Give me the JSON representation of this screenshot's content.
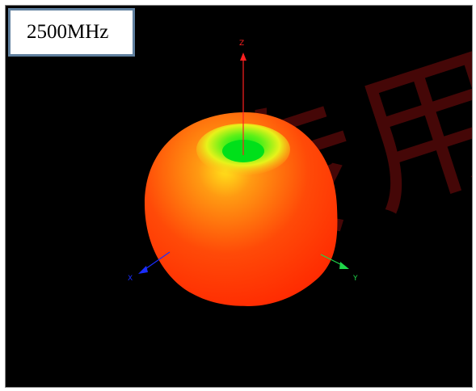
{
  "frequency_label": "2500MHz",
  "axes": {
    "x_label": "X",
    "y_label": "Y",
    "z_label": "Z"
  },
  "watermark_text": "专用",
  "colors": {
    "background": "#000000",
    "pattern_low": "#00e01a",
    "pattern_mid": "#ffd400",
    "pattern_high": "#ff2a00",
    "x_axis": "#1a2dff",
    "y_axis": "#1fd64a",
    "z_axis": "#ff2020",
    "watermark": "#5c0a0a"
  }
}
